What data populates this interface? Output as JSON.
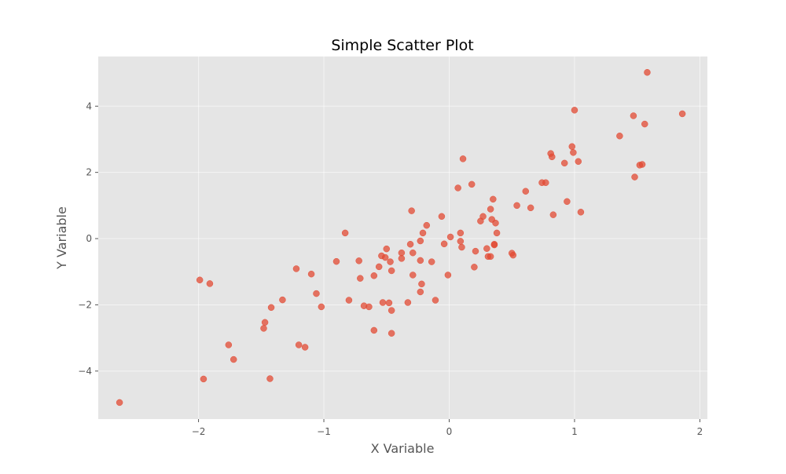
{
  "chart_data": {
    "type": "scatter",
    "title": "Simple Scatter Plot",
    "xlabel": "X Variable",
    "ylabel": "Y Variable",
    "xlim": [
      -2.8,
      2.06
    ],
    "ylim": [
      -5.45,
      5.5
    ],
    "xticks": [
      -2,
      -1,
      0,
      1,
      2
    ],
    "xtick_labels": [
      "−2",
      "−1",
      "0",
      "1",
      "2"
    ],
    "yticks": [
      -4,
      -2,
      0,
      2,
      4
    ],
    "ytick_labels": [
      "−4",
      "−2",
      "0",
      "2",
      "4"
    ],
    "grid": true,
    "legend": false,
    "colors": {
      "background": "#e5e5e5",
      "point": "#e24a33",
      "grid": "#ffffff"
    },
    "points": [
      {
        "x": -2.63,
        "y": -4.95
      },
      {
        "x": -1.99,
        "y": -1.25
      },
      {
        "x": -1.96,
        "y": -4.24
      },
      {
        "x": -1.91,
        "y": -1.36
      },
      {
        "x": -1.76,
        "y": -3.21
      },
      {
        "x": -1.72,
        "y": -3.65
      },
      {
        "x": -1.48,
        "y": -2.71
      },
      {
        "x": -1.47,
        "y": -2.53
      },
      {
        "x": -1.43,
        "y": -4.23
      },
      {
        "x": -1.42,
        "y": -2.08
      },
      {
        "x": -1.33,
        "y": -1.85
      },
      {
        "x": -1.22,
        "y": -0.91
      },
      {
        "x": -1.2,
        "y": -3.21
      },
      {
        "x": -1.15,
        "y": -3.28
      },
      {
        "x": -1.1,
        "y": -1.07
      },
      {
        "x": -1.06,
        "y": -1.66
      },
      {
        "x": -1.02,
        "y": -2.06
      },
      {
        "x": -0.9,
        "y": -0.69
      },
      {
        "x": -0.83,
        "y": 0.17
      },
      {
        "x": -0.8,
        "y": -1.86
      },
      {
        "x": -0.72,
        "y": -0.67
      },
      {
        "x": -0.71,
        "y": -1.2
      },
      {
        "x": -0.68,
        "y": -2.03
      },
      {
        "x": -0.64,
        "y": -2.06
      },
      {
        "x": -0.6,
        "y": -2.77
      },
      {
        "x": -0.6,
        "y": -1.12
      },
      {
        "x": -0.56,
        "y": -0.85
      },
      {
        "x": -0.54,
        "y": -0.52
      },
      {
        "x": -0.53,
        "y": -1.93
      },
      {
        "x": -0.51,
        "y": -0.57
      },
      {
        "x": -0.5,
        "y": -0.31
      },
      {
        "x": -0.48,
        "y": -1.94
      },
      {
        "x": -0.47,
        "y": -0.7
      },
      {
        "x": -0.46,
        "y": -0.97
      },
      {
        "x": -0.46,
        "y": -2.17
      },
      {
        "x": -0.46,
        "y": -2.86
      },
      {
        "x": -0.38,
        "y": -0.43
      },
      {
        "x": -0.38,
        "y": -0.6
      },
      {
        "x": -0.33,
        "y": -1.93
      },
      {
        "x": -0.31,
        "y": -0.17
      },
      {
        "x": -0.3,
        "y": 0.84
      },
      {
        "x": -0.29,
        "y": -1.1
      },
      {
        "x": -0.29,
        "y": -0.43
      },
      {
        "x": -0.23,
        "y": -0.66
      },
      {
        "x": -0.23,
        "y": -0.07
      },
      {
        "x": -0.23,
        "y": -1.61
      },
      {
        "x": -0.22,
        "y": -1.37
      },
      {
        "x": -0.21,
        "y": 0.17
      },
      {
        "x": -0.18,
        "y": 0.4
      },
      {
        "x": -0.14,
        "y": -0.7
      },
      {
        "x": -0.11,
        "y": -1.86
      },
      {
        "x": -0.06,
        "y": 0.67
      },
      {
        "x": -0.04,
        "y": -0.16
      },
      {
        "x": -0.01,
        "y": -1.1
      },
      {
        "x": 0.01,
        "y": 0.05
      },
      {
        "x": 0.07,
        "y": 1.53
      },
      {
        "x": 0.09,
        "y": 0.17
      },
      {
        "x": 0.09,
        "y": -0.08
      },
      {
        "x": 0.1,
        "y": -0.26
      },
      {
        "x": 0.11,
        "y": 2.41
      },
      {
        "x": 0.18,
        "y": 1.64
      },
      {
        "x": 0.2,
        "y": -0.86
      },
      {
        "x": 0.21,
        "y": -0.38
      },
      {
        "x": 0.25,
        "y": 0.53
      },
      {
        "x": 0.27,
        "y": 0.67
      },
      {
        "x": 0.3,
        "y": -0.3
      },
      {
        "x": 0.31,
        "y": -0.54
      },
      {
        "x": 0.33,
        "y": 0.89
      },
      {
        "x": 0.33,
        "y": -0.54
      },
      {
        "x": 0.34,
        "y": 0.58
      },
      {
        "x": 0.35,
        "y": 1.19
      },
      {
        "x": 0.36,
        "y": -0.19
      },
      {
        "x": 0.36,
        "y": -0.17
      },
      {
        "x": 0.37,
        "y": 0.47
      },
      {
        "x": 0.38,
        "y": 0.17
      },
      {
        "x": 0.5,
        "y": -0.44
      },
      {
        "x": 0.51,
        "y": -0.5
      },
      {
        "x": 0.54,
        "y": 1.0
      },
      {
        "x": 0.61,
        "y": 1.43
      },
      {
        "x": 0.65,
        "y": 0.93
      },
      {
        "x": 0.74,
        "y": 1.69
      },
      {
        "x": 0.77,
        "y": 1.69
      },
      {
        "x": 0.81,
        "y": 2.57
      },
      {
        "x": 0.82,
        "y": 2.47
      },
      {
        "x": 0.83,
        "y": 0.72
      },
      {
        "x": 0.92,
        "y": 2.28
      },
      {
        "x": 0.94,
        "y": 1.12
      },
      {
        "x": 0.98,
        "y": 2.78
      },
      {
        "x": 0.99,
        "y": 2.6
      },
      {
        "x": 1.0,
        "y": 3.88
      },
      {
        "x": 1.03,
        "y": 2.33
      },
      {
        "x": 1.05,
        "y": 0.8
      },
      {
        "x": 1.36,
        "y": 3.1
      },
      {
        "x": 1.47,
        "y": 3.71
      },
      {
        "x": 1.48,
        "y": 1.86
      },
      {
        "x": 1.52,
        "y": 2.22
      },
      {
        "x": 1.54,
        "y": 2.24
      },
      {
        "x": 1.56,
        "y": 3.46
      },
      {
        "x": 1.58,
        "y": 5.02
      },
      {
        "x": 1.86,
        "y": 3.77
      }
    ]
  }
}
